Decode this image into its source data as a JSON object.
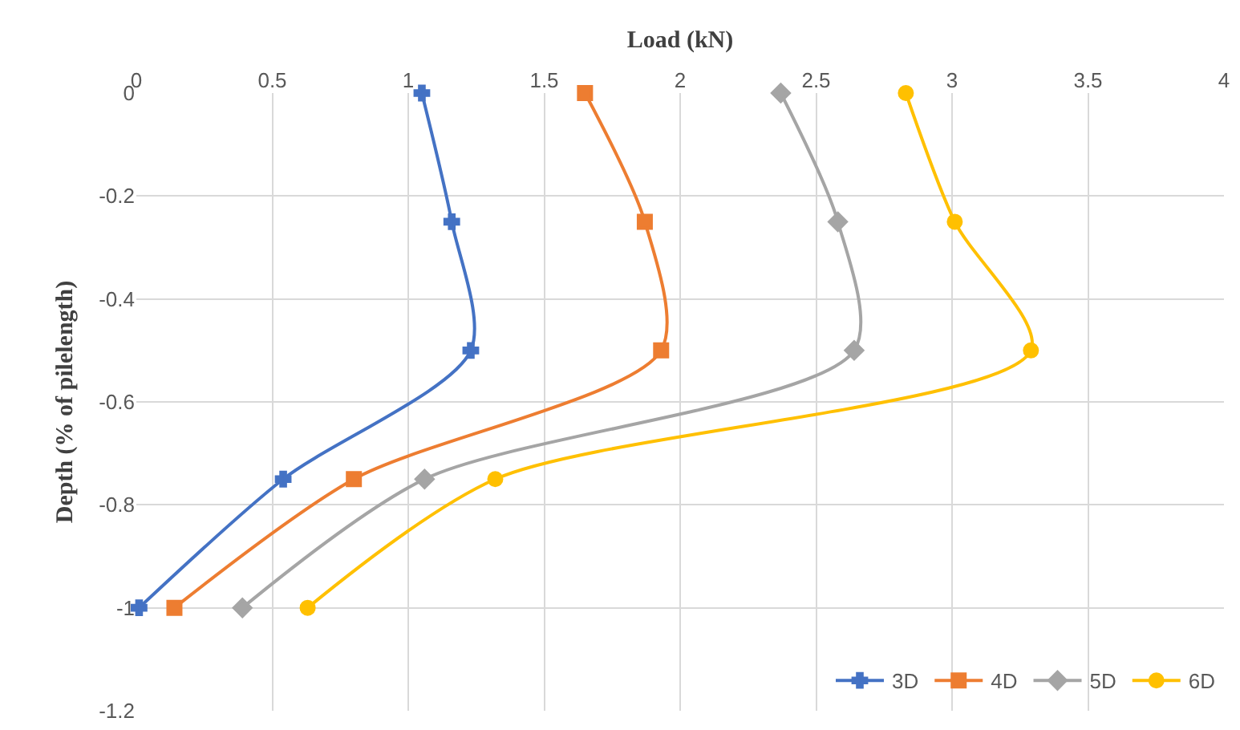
{
  "chart_data": {
    "type": "line",
    "xlabel": "Load (kN)",
    "ylabel": "Depth (% of pilelength)",
    "xlim": [
      0,
      4
    ],
    "xticks": [
      0,
      0.5,
      1,
      1.5,
      2,
      2.5,
      3,
      3.5,
      4
    ],
    "ylim": [
      -1.2,
      0
    ],
    "yticks": [
      0,
      -0.2,
      -0.4,
      -0.6,
      -0.8,
      -1,
      -1.2
    ],
    "grid": true,
    "legend": "bottom right",
    "line_style": "solid",
    "series": [
      {
        "name": "3D",
        "color": "#4472c4",
        "marker": "cross",
        "x": [
          1.05,
          1.16,
          1.23,
          0.54,
          0.01
        ],
        "values": [
          0,
          -0.25,
          -0.5,
          -0.75,
          -1
        ]
      },
      {
        "name": "4D",
        "color": "#ed7d31",
        "marker": "square",
        "x": [
          1.65,
          1.87,
          1.93,
          0.8,
          0.14
        ],
        "values": [
          0,
          -0.25,
          -0.5,
          -0.75,
          -1
        ]
      },
      {
        "name": "5D",
        "color": "#a5a5a5",
        "marker": "diamond",
        "x": [
          2.37,
          2.58,
          2.64,
          1.06,
          0.39
        ],
        "values": [
          0,
          -0.25,
          -0.5,
          -0.75,
          -1
        ]
      },
      {
        "name": "6D",
        "color": "#ffc000",
        "marker": "circle",
        "x": [
          2.83,
          3.01,
          3.29,
          1.32,
          0.63
        ],
        "values": [
          0,
          -0.25,
          -0.5,
          -0.75,
          -1
        ]
      }
    ]
  }
}
